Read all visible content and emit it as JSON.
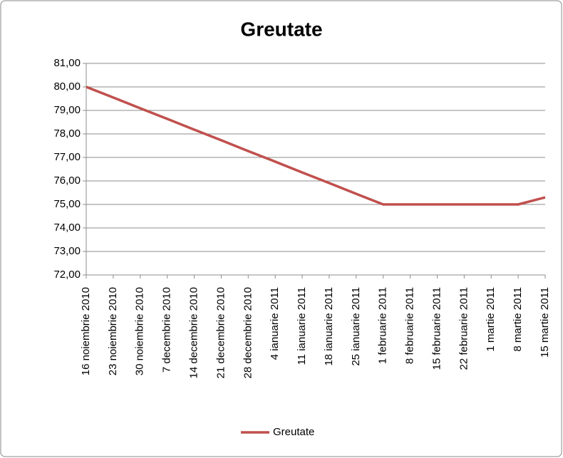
{
  "chart_data": {
    "type": "line",
    "title": "Greutate",
    "categories": [
      "16 noiembrie 2010",
      "23 noiembrie 2010",
      "30 noiembrie 2010",
      "7 decembrie 2010",
      "14 decembrie 2010",
      "21 decembrie 2010",
      "28 decembrie 2010",
      "4 ianuarie 2011",
      "11 ianuarie 2011",
      "18 ianuarie 2011",
      "25 ianuarie 2011",
      "1 februarie 2011",
      "8 februarie 2011",
      "15 februarie 2011",
      "22 februarie 2011",
      "1 martie 2011",
      "8 martie 2011",
      "15 martie 2011"
    ],
    "series": [
      {
        "name": "Greutate",
        "color": "#c0504d",
        "values": [
          80,
          79.55,
          79.09,
          78.64,
          78.18,
          77.73,
          77.27,
          76.82,
          76.36,
          75.91,
          75.45,
          75,
          75,
          75,
          75,
          75,
          75,
          75.3
        ]
      }
    ],
    "ylim": [
      72,
      81
    ],
    "yticks": [
      {
        "value": 72,
        "label": "72,00"
      },
      {
        "value": 73,
        "label": "73,00"
      },
      {
        "value": 74,
        "label": "74,00"
      },
      {
        "value": 75,
        "label": "75,00"
      },
      {
        "value": 76,
        "label": "76,00"
      },
      {
        "value": 77,
        "label": "77,00"
      },
      {
        "value": 78,
        "label": "78,00"
      },
      {
        "value": 79,
        "label": "79,00"
      },
      {
        "value": 80,
        "label": "80,00"
      },
      {
        "value": 81,
        "label": "81,00"
      }
    ],
    "grid": true,
    "legend": "bottom"
  }
}
